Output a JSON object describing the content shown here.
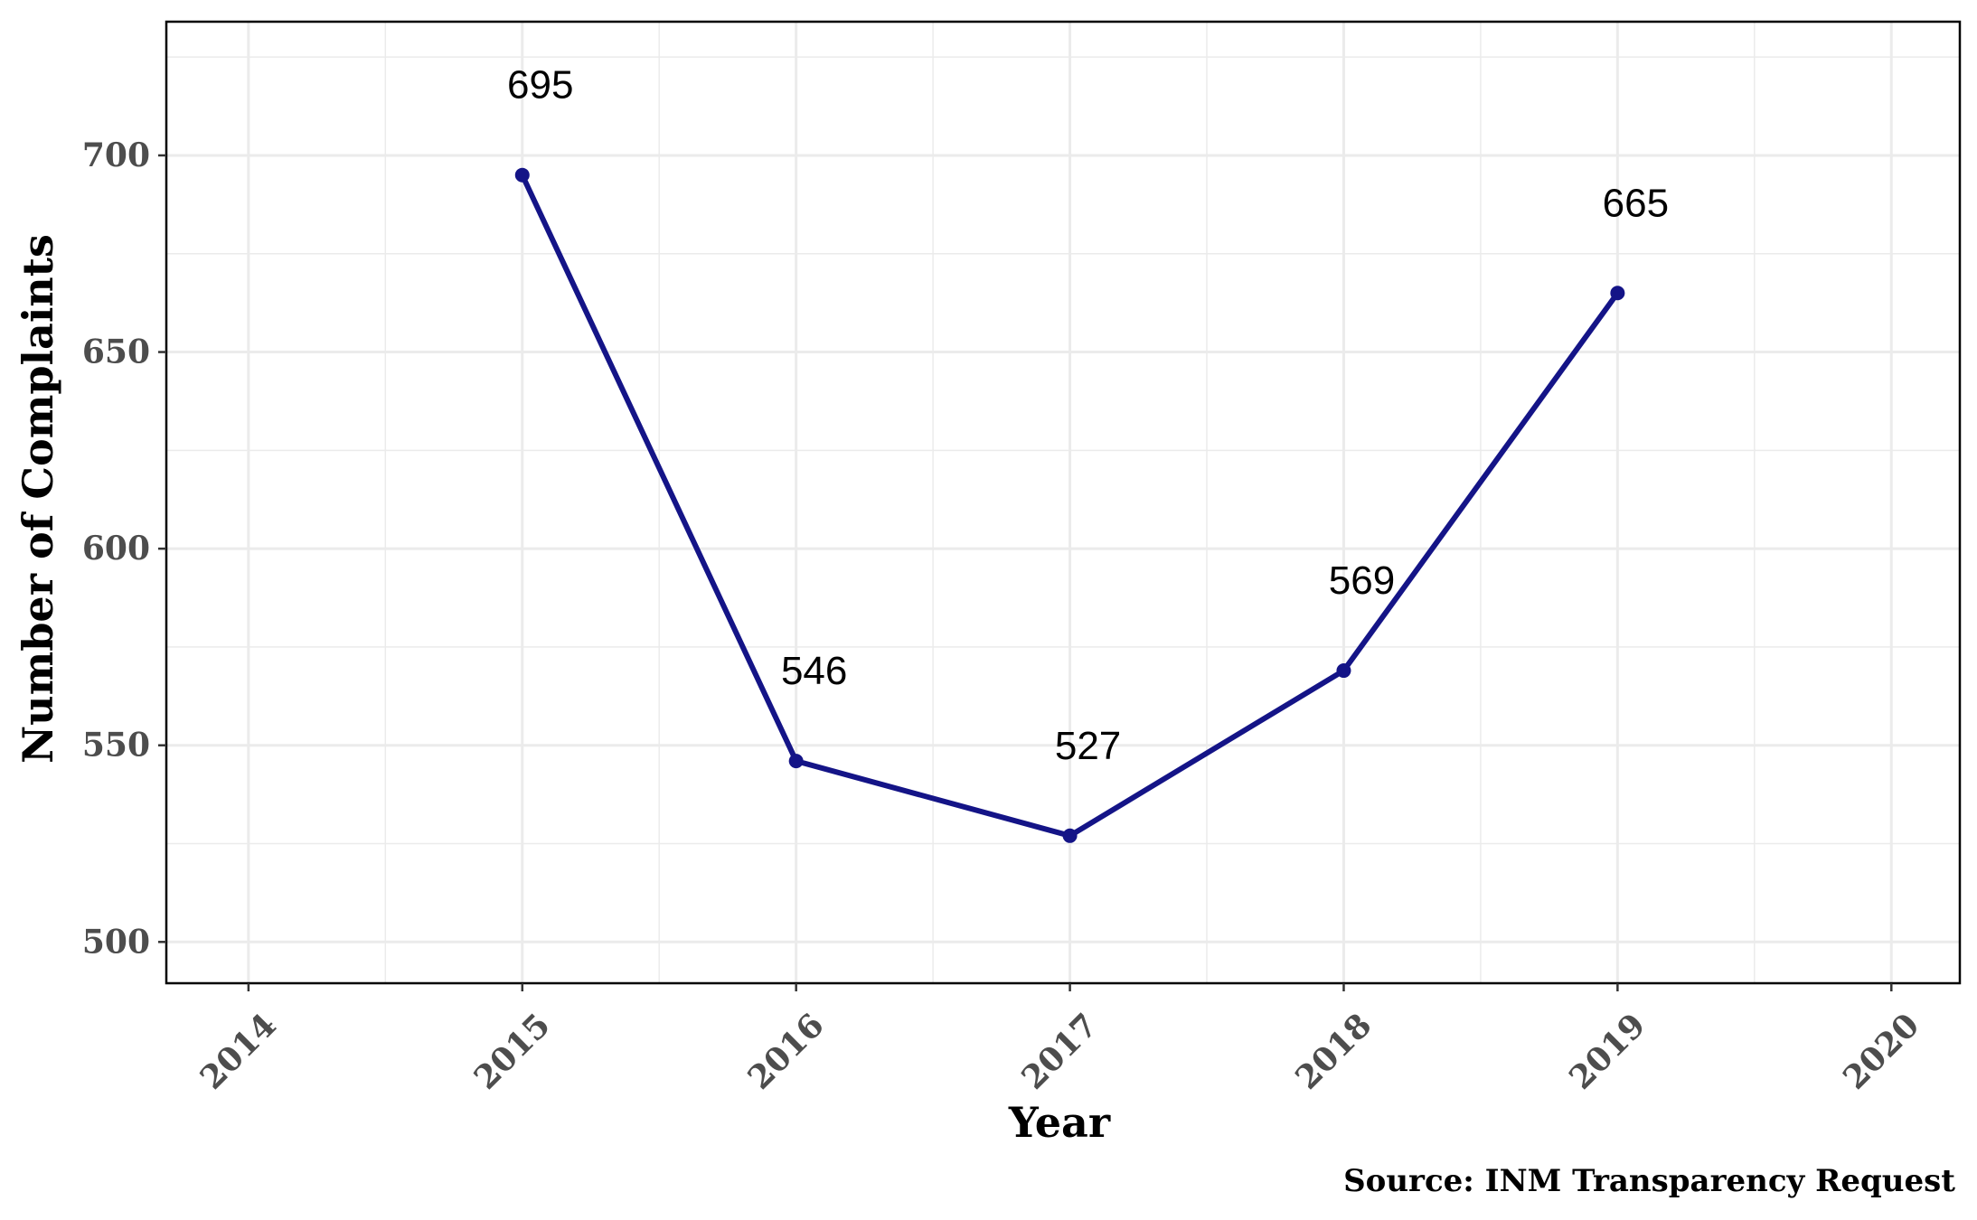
{
  "chart_data": {
    "type": "line",
    "title": "",
    "xlabel": "Year",
    "ylabel": "Number of Complaints",
    "caption": "Source: INM Transparency Request",
    "x": [
      2015,
      2016,
      2017,
      2018,
      2019
    ],
    "series": [
      {
        "values": [
          695,
          546,
          527,
          569,
          665
        ]
      }
    ],
    "data_labels": [
      "695",
      "546",
      "527",
      "569",
      "665"
    ],
    "xlim": [
      2013.7,
      2020.25
    ],
    "ylim": [
      489.5,
      734
    ],
    "x_ticks": [
      2014,
      2015,
      2016,
      2017,
      2018,
      2019,
      2020
    ],
    "x_tick_labels": [
      "2014",
      "2015",
      "2016",
      "2017",
      "2018",
      "2019",
      "2020"
    ],
    "y_ticks": [
      500,
      550,
      600,
      650,
      700
    ],
    "y_tick_labels": [
      "500",
      "550",
      "600",
      "650",
      "700"
    ],
    "grid": true,
    "legend": "none",
    "colors": {
      "line": "#141487",
      "point": "#141487",
      "grid": "#ebebeb",
      "axis": "#000000"
    }
  }
}
